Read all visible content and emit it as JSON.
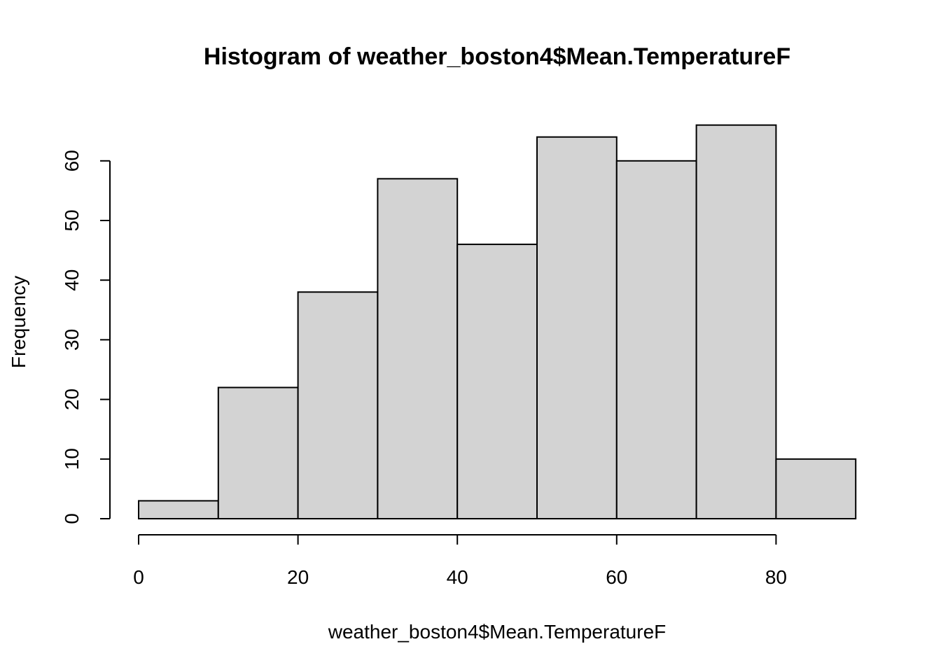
{
  "chart_data": {
    "type": "bar",
    "title": "Histogram of weather_boston4$Mean.TemperatureF",
    "xlabel": "weather_boston4$Mean.TemperatureF",
    "ylabel": "Frequency",
    "bins": [
      {
        "x0": 0,
        "x1": 10,
        "count": 3
      },
      {
        "x0": 10,
        "x1": 20,
        "count": 22
      },
      {
        "x0": 20,
        "x1": 30,
        "count": 38
      },
      {
        "x0": 30,
        "x1": 40,
        "count": 57
      },
      {
        "x0": 40,
        "x1": 50,
        "count": 46
      },
      {
        "x0": 50,
        "x1": 60,
        "count": 64
      },
      {
        "x0": 60,
        "x1": 70,
        "count": 60
      },
      {
        "x0": 70,
        "x1": 80,
        "count": 66
      },
      {
        "x0": 80,
        "x1": 90,
        "count": 10
      }
    ],
    "xlim": [
      0,
      90
    ],
    "ylim": [
      0,
      66
    ],
    "x_ticks": [
      0,
      20,
      40,
      60,
      80
    ],
    "y_ticks": [
      0,
      10,
      20,
      30,
      40,
      50,
      60
    ],
    "bar_color": "#d3d3d3",
    "grid": false,
    "legend": false
  }
}
